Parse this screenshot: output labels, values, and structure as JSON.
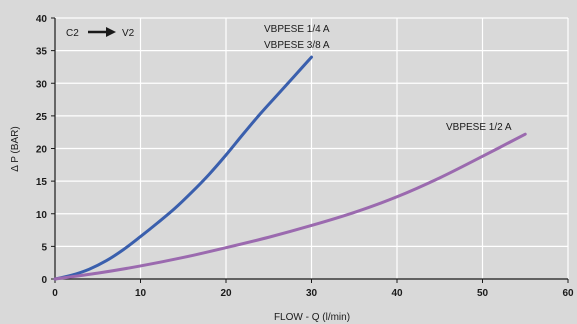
{
  "chart_data": {
    "type": "line",
    "title": "",
    "xlabel": "FLOW - Q (l/min)",
    "ylabel": "Δ P (BAR)",
    "xlim": [
      0,
      60
    ],
    "ylim": [
      0,
      40
    ],
    "xticks": [
      0,
      10,
      20,
      30,
      40,
      50,
      60
    ],
    "yticks": [
      0,
      5,
      10,
      15,
      20,
      25,
      30,
      35,
      40
    ],
    "grid": true,
    "annotation": {
      "from": "C2",
      "to": "V2"
    },
    "series": [
      {
        "name": "VBPESE 1/4 A",
        "name2": "VBPESE 3/8 A",
        "color": "#3a5fad",
        "x": [
          0,
          2,
          4,
          6,
          8,
          10,
          12,
          14,
          16,
          18,
          20,
          22,
          24,
          26,
          28,
          30
        ],
        "y": [
          0,
          0.6,
          1.5,
          2.8,
          4.5,
          6.5,
          8.6,
          10.8,
          13.3,
          16.0,
          19.0,
          22.2,
          25.3,
          28.2,
          31.1,
          34.0
        ]
      },
      {
        "name": "VBPESE 1/2 A",
        "color": "#9b6aaf",
        "x": [
          0,
          5,
          10,
          15,
          20,
          25,
          30,
          35,
          40,
          45,
          50,
          55
        ],
        "y": [
          0,
          0.9,
          2.0,
          3.3,
          4.8,
          6.4,
          8.2,
          10.2,
          12.6,
          15.5,
          18.8,
          22.2
        ]
      }
    ]
  }
}
